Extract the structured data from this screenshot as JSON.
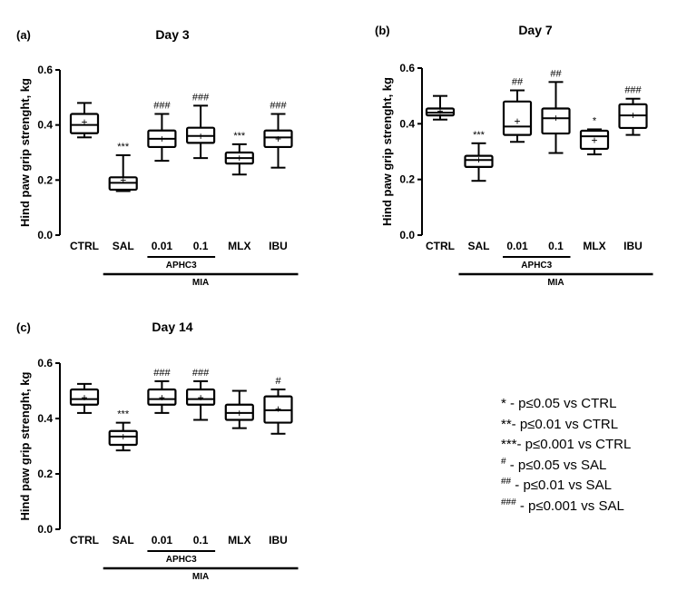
{
  "chart_data": [
    {
      "type": "boxplot",
      "panel_label": "(a)",
      "title": "Day 3",
      "ylabel": "Hind paw grip strenght, kg",
      "ylim": [
        0,
        0.6
      ],
      "yticks": [
        "0.0",
        "0.2",
        "0.4",
        "0.6"
      ],
      "categories": [
        "CTRL",
        "SAL",
        "0.01",
        "0.1",
        "MLX",
        "IBU"
      ],
      "boxes": [
        {
          "min": 0.355,
          "q1": 0.37,
          "median": 0.4,
          "q3": 0.44,
          "max": 0.48,
          "mean": 0.41,
          "sig": ""
        },
        {
          "min": 0.16,
          "q1": 0.165,
          "median": 0.19,
          "q3": 0.21,
          "max": 0.29,
          "mean": 0.2,
          "sig": "***"
        },
        {
          "min": 0.27,
          "q1": 0.32,
          "median": 0.35,
          "q3": 0.38,
          "max": 0.44,
          "mean": 0.35,
          "sig": "###"
        },
        {
          "min": 0.28,
          "q1": 0.335,
          "median": 0.36,
          "q3": 0.39,
          "max": 0.47,
          "mean": 0.36,
          "sig": "###"
        },
        {
          "min": 0.22,
          "q1": 0.26,
          "median": 0.28,
          "q3": 0.3,
          "max": 0.33,
          "mean": 0.28,
          "sig": "***"
        },
        {
          "min": 0.245,
          "q1": 0.32,
          "median": 0.355,
          "q3": 0.38,
          "max": 0.44,
          "mean": 0.35,
          "sig": "###"
        }
      ],
      "groups": [
        {
          "label": "APHC3",
          "from": 2,
          "to": 3
        },
        {
          "label": "MIA",
          "from": 1,
          "to": 5
        }
      ]
    },
    {
      "type": "boxplot",
      "panel_label": "(b)",
      "title": "Day 7",
      "ylabel": "Hind paw grip strenght, kg",
      "ylim": [
        0,
        0.6
      ],
      "yticks": [
        "0.0",
        "0.2",
        "0.4",
        "0.6"
      ],
      "categories": [
        "CTRL",
        "SAL",
        "0.01",
        "0.1",
        "MLX",
        "IBU"
      ],
      "boxes": [
        {
          "min": 0.415,
          "q1": 0.43,
          "median": 0.44,
          "q3": 0.455,
          "max": 0.5,
          "mean": 0.445,
          "sig": ""
        },
        {
          "min": 0.195,
          "q1": 0.245,
          "median": 0.27,
          "q3": 0.285,
          "max": 0.33,
          "mean": 0.27,
          "sig": "***"
        },
        {
          "min": 0.335,
          "q1": 0.36,
          "median": 0.39,
          "q3": 0.48,
          "max": 0.52,
          "mean": 0.41,
          "sig": "##"
        },
        {
          "min": 0.295,
          "q1": 0.365,
          "median": 0.42,
          "q3": 0.455,
          "max": 0.55,
          "mean": 0.42,
          "sig": "##"
        },
        {
          "min": 0.29,
          "q1": 0.31,
          "median": 0.355,
          "q3": 0.375,
          "max": 0.38,
          "mean": 0.34,
          "sig": "*"
        },
        {
          "min": 0.36,
          "q1": 0.385,
          "median": 0.43,
          "q3": 0.47,
          "max": 0.49,
          "mean": 0.43,
          "sig": "###"
        }
      ],
      "groups": [
        {
          "label": "APHC3",
          "from": 2,
          "to": 3
        },
        {
          "label": "MIA",
          "from": 1,
          "to": 5
        }
      ]
    },
    {
      "type": "boxplot",
      "panel_label": "(c)",
      "title": "Day 14",
      "ylabel": "Hind paw grip strenght, kg",
      "ylim": [
        0,
        0.6
      ],
      "yticks": [
        "0.0",
        "0.2",
        "0.4",
        "0.6"
      ],
      "categories": [
        "CTRL",
        "SAL",
        "0.01",
        "0.1",
        "MLX",
        "IBU"
      ],
      "boxes": [
        {
          "min": 0.42,
          "q1": 0.45,
          "median": 0.47,
          "q3": 0.505,
          "max": 0.525,
          "mean": 0.475,
          "sig": ""
        },
        {
          "min": 0.285,
          "q1": 0.305,
          "median": 0.335,
          "q3": 0.355,
          "max": 0.385,
          "mean": 0.335,
          "sig": "***"
        },
        {
          "min": 0.42,
          "q1": 0.45,
          "median": 0.47,
          "q3": 0.505,
          "max": 0.535,
          "mean": 0.475,
          "sig": "###"
        },
        {
          "min": 0.395,
          "q1": 0.45,
          "median": 0.47,
          "q3": 0.505,
          "max": 0.535,
          "mean": 0.475,
          "sig": "###"
        },
        {
          "min": 0.365,
          "q1": 0.395,
          "median": 0.42,
          "q3": 0.45,
          "max": 0.5,
          "mean": 0.42,
          "sig": ""
        },
        {
          "min": 0.345,
          "q1": 0.385,
          "median": 0.43,
          "q3": 0.48,
          "max": 0.505,
          "mean": 0.435,
          "sig": "#"
        }
      ],
      "groups": [
        {
          "label": "APHC3",
          "from": 2,
          "to": 3
        },
        {
          "label": "MIA",
          "from": 1,
          "to": 5
        }
      ]
    }
  ],
  "legend": [
    {
      "sup": "",
      "text": "* - p≤0.05 vs CTRL"
    },
    {
      "sup": "",
      "text": "**- p≤0.01 vs CTRL"
    },
    {
      "sup": "",
      "text": "***- p≤0.001 vs CTRL"
    },
    {
      "sup": "#",
      "text": " - p≤0.05 vs SAL"
    },
    {
      "sup": "##",
      "text": " - p≤0.01 vs SAL"
    },
    {
      "sup": "###",
      "text": " - p≤0.001 vs SAL"
    }
  ]
}
